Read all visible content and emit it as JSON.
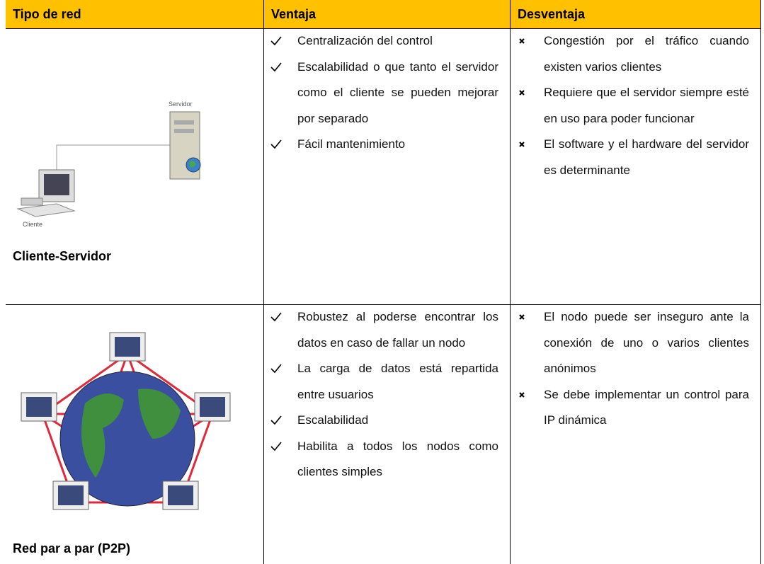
{
  "table": {
    "headers": [
      "Tipo de red",
      "Ventaja",
      "Desventaja"
    ],
    "rows": [
      {
        "type": "Cliente-Servidor",
        "diagram_labels": [
          "Servidor",
          "Cliente"
        ],
        "advantages": [
          "Centralización del control",
          "Escalabilidad o que tanto el servidor como el cliente se pueden mejorar por separado",
          "Fácil mantenimiento"
        ],
        "disadvantages": [
          "Congestión por el tráfico cuando existen varios clientes",
          "Requiere que el servidor siempre esté en uso para poder funcionar",
          "El software y el hardware del servidor es determinante"
        ]
      },
      {
        "type": "Red par a par (P2P)",
        "advantages": [
          "Robustez al poderse encontrar los datos en caso de fallar un nodo",
          "La carga de datos está repartida entre usuarios",
          "Escalabilidad",
          "Habilita a todos los nodos como clientes simples"
        ],
        "disadvantages": [
          "El nodo puede ser inseguro ante la conexión de uno o varios clientes anónimos",
          "Se debe implementar un control para IP dinámica"
        ]
      }
    ]
  }
}
